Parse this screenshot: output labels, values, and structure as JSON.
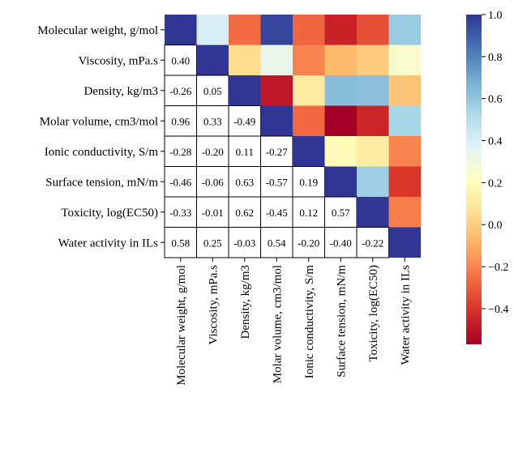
{
  "chart_data": {
    "type": "heatmap",
    "title": "",
    "labels": [
      "Molecular weight, g/mol",
      "Viscosity, mPa.s",
      "Density, kg/m3",
      "Molar volume, cm3/mol",
      "Ionic conductivity, S/m",
      "Surface tension, mN/m",
      "Toxicity, log(EC50)",
      "Water activity in ILs"
    ],
    "lower_triangle_values": [
      [],
      [
        0.4
      ],
      [
        -0.26,
        0.05
      ],
      [
        0.96,
        0.33,
        -0.49
      ],
      [
        -0.28,
        -0.2,
        0.11,
        -0.27
      ],
      [
        -0.46,
        -0.06,
        0.63,
        -0.57,
        0.19
      ],
      [
        -0.33,
        -0.01,
        0.62,
        -0.45,
        0.12,
        0.57
      ],
      [
        0.58,
        0.25,
        -0.03,
        0.54,
        -0.2,
        -0.4,
        -0.22
      ]
    ],
    "upper_triangle_color_values": [
      [
        1.0,
        0.4,
        -0.26,
        0.96,
        -0.28,
        -0.46,
        -0.33,
        0.58
      ],
      [
        null,
        1.0,
        0.05,
        0.33,
        -0.2,
        -0.06,
        -0.01,
        0.25
      ],
      [
        null,
        null,
        1.0,
        -0.49,
        0.11,
        0.63,
        0.62,
        -0.03
      ],
      [
        null,
        null,
        null,
        1.0,
        -0.27,
        -0.57,
        -0.45,
        0.54
      ],
      [
        null,
        null,
        null,
        null,
        1.0,
        0.19,
        0.12,
        -0.2
      ],
      [
        null,
        null,
        null,
        null,
        null,
        1.0,
        0.57,
        -0.4
      ],
      [
        null,
        null,
        null,
        null,
        null,
        null,
        1.0,
        -0.22
      ],
      [
        null,
        null,
        null,
        null,
        null,
        null,
        null,
        1.0
      ]
    ],
    "colorbar": {
      "range": [
        -0.57,
        1.0
      ],
      "ticks": [
        1.0,
        0.8,
        0.6,
        0.4,
        0.2,
        0.0,
        -0.2,
        -0.4
      ],
      "tick_labels": [
        "1.0",
        "0.8",
        "0.6",
        "0.4",
        "0.2",
        "0.0",
        "−0.2",
        "−0.4"
      ],
      "colormap": "RdYlBu"
    },
    "grid": false,
    "legend": "none"
  }
}
